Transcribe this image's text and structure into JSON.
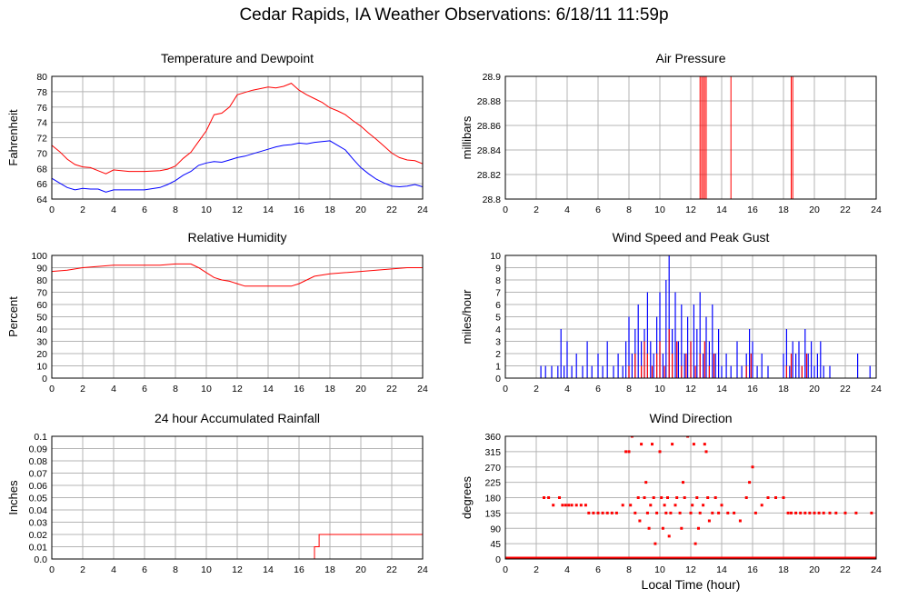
{
  "page": {
    "title": "Cedar Rapids, IA Weather Observations: 6/18/11 11:59p",
    "x_axis_label": "Local Time (hour)"
  },
  "chart_data": [
    {
      "id": "temp",
      "type": "line",
      "title": "Temperature and Dewpoint",
      "ylabel": "Fahrenheit",
      "xlabel": "",
      "xlim": [
        0,
        24
      ],
      "ylim": [
        64,
        80
      ],
      "x_ticks": [
        0,
        2,
        4,
        6,
        8,
        10,
        12,
        14,
        16,
        18,
        20,
        22,
        24
      ],
      "y_ticks": [
        64,
        66,
        68,
        70,
        72,
        74,
        76,
        78,
        80
      ],
      "y_tick_labels": [
        "64",
        "66",
        "68",
        "70",
        "72",
        "74",
        "76",
        "78",
        "80"
      ],
      "grid": true,
      "series": [
        {
          "color": "#ff0000",
          "x": [
            0,
            0.5,
            1,
            1.5,
            2,
            2.5,
            3,
            3.5,
            4,
            5,
            6,
            7,
            7.5,
            8,
            8.5,
            9,
            9.5,
            10,
            10.5,
            11,
            11.5,
            12,
            12.5,
            13,
            13.5,
            14,
            14.5,
            15,
            15.5,
            16,
            16.5,
            17,
            17.5,
            18,
            18.5,
            19,
            19.5,
            20,
            20.5,
            21,
            21.5,
            22,
            22.5,
            23,
            23.5,
            24
          ],
          "y": [
            71,
            70.2,
            69.2,
            68.5,
            68.2,
            68.1,
            67.7,
            67.3,
            67.8,
            67.6,
            67.6,
            67.7,
            67.9,
            68.3,
            69.3,
            70.1,
            71.5,
            72.9,
            75,
            75.2,
            76,
            77.6,
            77.9,
            78.2,
            78.4,
            78.6,
            78.5,
            78.7,
            79.1,
            78.2,
            77.6,
            77.1,
            76.6,
            75.9,
            75.5,
            75,
            74.2,
            73.5,
            72.6,
            71.8,
            70.9,
            70,
            69.4,
            69.1,
            69,
            68.6
          ]
        },
        {
          "color": "#0000ff",
          "x": [
            0,
            0.5,
            1,
            1.5,
            2,
            2.5,
            3,
            3.5,
            4,
            5,
            6,
            7,
            7.5,
            8,
            8.5,
            9,
            9.5,
            10,
            10.5,
            11,
            11.5,
            12,
            12.5,
            13,
            13.5,
            14,
            14.5,
            15,
            15.5,
            16,
            16.5,
            17,
            17.5,
            18,
            18.5,
            19,
            19.5,
            20,
            20.5,
            21,
            21.5,
            22,
            22.5,
            23,
            23.5,
            24
          ],
          "y": [
            66.7,
            66.1,
            65.5,
            65.2,
            65.4,
            65.3,
            65.3,
            64.9,
            65.2,
            65.2,
            65.2,
            65.5,
            65.9,
            66.4,
            67.1,
            67.6,
            68.4,
            68.7,
            68.9,
            68.8,
            69.1,
            69.4,
            69.6,
            69.9,
            70.2,
            70.5,
            70.8,
            71,
            71.1,
            71.3,
            71.2,
            71.4,
            71.5,
            71.6,
            71,
            70.4,
            69.2,
            68.1,
            67.3,
            66.6,
            66.1,
            65.7,
            65.6,
            65.7,
            65.9,
            65.6
          ]
        }
      ]
    },
    {
      "id": "press",
      "type": "line",
      "title": "Air Pressure",
      "ylabel": "millibars",
      "xlabel": "",
      "xlim": [
        0,
        24
      ],
      "ylim": [
        28.8,
        28.9
      ],
      "x_ticks": [
        0,
        2,
        4,
        6,
        8,
        10,
        12,
        14,
        16,
        18,
        20,
        22,
        24
      ],
      "y_ticks": [
        28.8,
        28.82,
        28.84,
        28.86,
        28.88,
        28.9
      ],
      "y_tick_labels": [
        "28.8",
        "28.82",
        "28.84",
        "28.86",
        "28.88",
        "28.9"
      ],
      "grid": true,
      "series": [
        {
          "color": "#ff0000",
          "x": [
            0,
            12.6,
            12.6,
            12.7,
            12.7,
            12.8,
            12.8,
            12.9,
            12.9,
            13,
            13,
            14.6,
            14.6,
            18.5,
            18.5,
            18.6,
            18.6,
            24
          ],
          "y": [
            28.9,
            28.9,
            28.8,
            28.8,
            28.9,
            28.9,
            28.8,
            28.8,
            28.9,
            28.9,
            28.8,
            28.8,
            28.9,
            28.9,
            28.8,
            28.8,
            28.9,
            28.9
          ]
        }
      ]
    },
    {
      "id": "rh",
      "type": "line",
      "title": "Relative Humidity",
      "ylabel": "Percent",
      "xlabel": "",
      "xlim": [
        0,
        24
      ],
      "ylim": [
        0,
        100
      ],
      "x_ticks": [
        0,
        2,
        4,
        6,
        8,
        10,
        12,
        14,
        16,
        18,
        20,
        22,
        24
      ],
      "y_ticks": [
        0,
        10,
        20,
        30,
        40,
        50,
        60,
        70,
        80,
        90,
        100
      ],
      "y_tick_labels": [
        "0",
        "10",
        "20",
        "30",
        "40",
        "50",
        "60",
        "70",
        "80",
        "90",
        "100"
      ],
      "grid": true,
      "series": [
        {
          "color": "#ff0000",
          "x": [
            0,
            1,
            2,
            3,
            4,
            5,
            6,
            7,
            8,
            9,
            9.5,
            10,
            10.5,
            11,
            11.5,
            12,
            12.5,
            13,
            14,
            15,
            15.5,
            16,
            16.5,
            17,
            18,
            19,
            20,
            21,
            22,
            23,
            24
          ],
          "y": [
            87,
            88,
            90,
            91,
            92,
            92,
            92,
            92,
            93,
            93,
            90,
            86,
            82,
            80,
            79,
            77,
            75,
            75,
            75,
            75,
            75,
            77,
            80,
            83,
            85,
            86,
            87,
            88,
            89,
            90,
            90
          ]
        }
      ]
    },
    {
      "id": "wind",
      "type": "line",
      "title": "Wind Speed and Peak Gust",
      "ylabel": "miles/hour",
      "xlabel": "",
      "xlim": [
        0,
        24
      ],
      "ylim": [
        0,
        10
      ],
      "x_ticks": [
        0,
        2,
        4,
        6,
        8,
        10,
        12,
        14,
        16,
        18,
        20,
        22,
        24
      ],
      "y_ticks": [
        0,
        1,
        2,
        3,
        4,
        5,
        6,
        7,
        8,
        9,
        10
      ],
      "y_tick_labels": [
        "0",
        "1",
        "2",
        "3",
        "4",
        "5",
        "6",
        "7",
        "8",
        "9",
        "10"
      ],
      "grid": true,
      "series": [
        {
          "color": "#0000ff",
          "x": [
            2.3,
            2.6,
            3.0,
            3.4,
            3.6,
            3.8,
            4.0,
            4.3,
            4.6,
            5.0,
            5.3,
            5.6,
            6.0,
            6.3,
            6.6,
            7.0,
            7.3,
            7.6,
            7.8,
            8.0,
            8.2,
            8.4,
            8.6,
            8.8,
            9.0,
            9.2,
            9.4,
            9.6,
            9.8,
            10.0,
            10.2,
            10.4,
            10.6,
            10.8,
            11.0,
            11.2,
            11.4,
            11.6,
            11.8,
            12.0,
            12.2,
            12.4,
            12.6,
            12.8,
            13.0,
            13.2,
            13.4,
            13.6,
            13.8,
            14.0,
            14.3,
            14.6,
            15.0,
            15.3,
            15.6,
            15.8,
            16.0,
            16.3,
            16.6,
            17.0,
            18.0,
            18.2,
            18.4,
            18.6,
            18.8,
            19.0,
            19.2,
            19.4,
            19.6,
            19.8,
            20.0,
            20.2,
            20.4,
            20.6,
            21.0,
            22.8,
            23.6
          ],
          "y": [
            1,
            1,
            1,
            1,
            4,
            1,
            3,
            1,
            2,
            1,
            3,
            1,
            2,
            1,
            3,
            1,
            2,
            1,
            3,
            5,
            2,
            4,
            6,
            3,
            4,
            7,
            3,
            2,
            5,
            7,
            2,
            8,
            10,
            4,
            7,
            3,
            6,
            2,
            5,
            3,
            6,
            4,
            7,
            2,
            5,
            3,
            6,
            2,
            4,
            1,
            2,
            1,
            3,
            1,
            2,
            4,
            3,
            1,
            2,
            1,
            2,
            4,
            1,
            3,
            2,
            3,
            1,
            4,
            2,
            3,
            1,
            2,
            3,
            1,
            1,
            2,
            1
          ]
        },
        {
          "color": "#ff0000",
          "x": [
            8.0,
            8.4,
            8.8,
            9.0,
            9.2,
            9.5,
            9.8,
            10.0,
            10.3,
            10.6,
            10.8,
            11.1,
            11.4,
            11.7,
            12.0,
            12.3,
            12.6,
            12.9,
            13.2,
            13.5,
            15.6,
            15.9,
            18.2,
            18.5,
            19.2,
            19.5
          ],
          "y": [
            1,
            2,
            1,
            3,
            2,
            1,
            2,
            3,
            1,
            4,
            2,
            3,
            1,
            2,
            3,
            1,
            2,
            3,
            1,
            2,
            1,
            2,
            1,
            2,
            1,
            2
          ]
        }
      ]
    },
    {
      "id": "rain",
      "type": "line",
      "title": "24 hour Accumulated Rainfall",
      "ylabel": "Inches",
      "xlabel": "",
      "xlim": [
        0,
        24
      ],
      "ylim": [
        0,
        0.1
      ],
      "x_ticks": [
        0,
        2,
        4,
        6,
        8,
        10,
        12,
        14,
        16,
        18,
        20,
        22,
        24
      ],
      "y_ticks": [
        0,
        0.01,
        0.02,
        0.03,
        0.04,
        0.05,
        0.06,
        0.07,
        0.08,
        0.09,
        0.1
      ],
      "y_tick_labels": [
        "0.0",
        "0.01",
        "0.02",
        "0.03",
        "0.04",
        "0.05",
        "0.06",
        "0.07",
        "0.08",
        "0.09",
        "0.1"
      ],
      "grid": true,
      "series": [
        {
          "color": "#ff0000",
          "x": [
            0,
            17.0,
            17.0,
            17.3,
            17.3,
            24
          ],
          "y": [
            0,
            0,
            0.01,
            0.01,
            0.02,
            0.02
          ]
        }
      ]
    },
    {
      "id": "dir",
      "type": "scatter",
      "title": "Wind Direction",
      "ylabel": "degrees",
      "xlabel": "",
      "xlim": [
        0,
        24
      ],
      "ylim": [
        0,
        360
      ],
      "x_ticks": [
        0,
        2,
        4,
        6,
        8,
        10,
        12,
        14,
        16,
        18,
        20,
        22,
        24
      ],
      "y_ticks": [
        0,
        45,
        90,
        135,
        180,
        225,
        270,
        315,
        360
      ],
      "y_tick_labels": [
        "0",
        "45",
        "90",
        "135",
        "180",
        "225",
        "270",
        "315",
        "360"
      ],
      "grid": true,
      "baseline_zero": true,
      "series": [
        {
          "color": "#ff0000",
          "x": [
            2.5,
            2.8,
            3.1,
            3.5,
            3.7,
            3.9,
            4.1,
            4.3,
            4.6,
            4.9,
            5.2,
            5.4,
            5.7,
            6.0,
            6.3,
            6.6,
            6.9,
            7.2,
            7.6,
            7.8,
            8.0,
            8.1,
            8.2,
            8.4,
            8.6,
            8.7,
            8.8,
            9.0,
            9.1,
            9.2,
            9.3,
            9.4,
            9.5,
            9.6,
            9.7,
            9.8,
            10.0,
            10.1,
            10.2,
            10.3,
            10.4,
            10.5,
            10.6,
            10.7,
            10.8,
            11.0,
            11.1,
            11.3,
            11.4,
            11.5,
            11.6,
            11.8,
            12.0,
            12.1,
            12.2,
            12.3,
            12.4,
            12.5,
            12.6,
            12.8,
            12.9,
            13.0,
            13.1,
            13.2,
            13.4,
            13.6,
            13.8,
            14.0,
            14.4,
            14.8,
            15.2,
            15.6,
            15.8,
            16.0,
            16.2,
            16.6,
            17.0,
            17.5,
            18.0,
            18.3,
            18.5,
            18.8,
            19.1,
            19.4,
            19.7,
            20.0,
            20.3,
            20.6,
            21.0,
            21.4,
            22.0,
            22.7,
            23.7
          ],
          "y": [
            180,
            180,
            158,
            180,
            158,
            158,
            158,
            158,
            158,
            158,
            158,
            135,
            135,
            135,
            135,
            135,
            135,
            135,
            158,
            315,
            315,
            158,
            360,
            135,
            180,
            112,
            337,
            180,
            225,
            135,
            90,
            158,
            337,
            180,
            45,
            135,
            315,
            180,
            90,
            158,
            135,
            180,
            67,
            135,
            337,
            158,
            180,
            135,
            90,
            225,
            180,
            360,
            135,
            158,
            337,
            45,
            180,
            90,
            135,
            158,
            337,
            315,
            180,
            112,
            135,
            180,
            135,
            158,
            135,
            135,
            112,
            180,
            225,
            270,
            135,
            158,
            180,
            180,
            180,
            135,
            135,
            135,
            135,
            135,
            135,
            135,
            135,
            135,
            135,
            135,
            135,
            135,
            135
          ]
        }
      ]
    }
  ]
}
